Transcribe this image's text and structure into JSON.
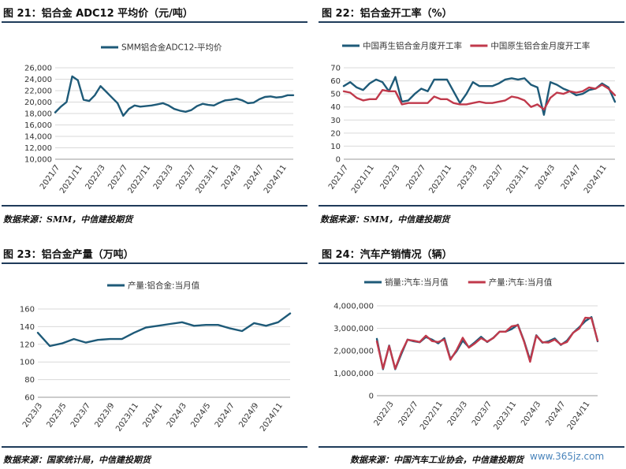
{
  "panels": [
    {
      "title": "图 21：铝合金 ADC12 平均价（元/吨）",
      "source": "数据来源：SMM，中信建投期货"
    },
    {
      "title": "图 22：铝合金开工率（%）",
      "source": "数据来源：SMM，中信建投期货"
    },
    {
      "title": "图 23：铝合金产量（万吨）",
      "source": "数据来源：国家统计局，中信建投期货"
    },
    {
      "title": "图 24：汽车产销情况（辆）",
      "source": "数据来源：中国汽车工业协会，中信建投期货"
    }
  ],
  "watermark": "www.365jz.com",
  "colors": {
    "navy": "#1e5a78",
    "red": "#c0394b",
    "rule": "#1f3b5a"
  },
  "chart_data": [
    {
      "type": "line",
      "title": "图 21：铝合金 ADC12 平均价（元/吨）",
      "xlabel": "",
      "ylabel": "",
      "ylim": [
        10000,
        26000
      ],
      "yticks": [
        10000,
        12000,
        14000,
        16000,
        18000,
        20000,
        22000,
        24000,
        26000
      ],
      "ytick_labels": [
        "10,000",
        "12,000",
        "14,000",
        "16,000",
        "18,000",
        "20,000",
        "22,000",
        "24,000",
        "26,000"
      ],
      "x_ticks": [
        "2021/7",
        "2021/11",
        "2022/3",
        "2022/7",
        "2022/11",
        "2023/3",
        "2023/7",
        "2023/11",
        "2024/3",
        "2024/7",
        "2024/11"
      ],
      "x": [
        "2021/7",
        "2021/8",
        "2021/9",
        "2021/10",
        "2021/11",
        "2021/12",
        "2022/1",
        "2022/2",
        "2022/3",
        "2022/4",
        "2022/5",
        "2022/6",
        "2022/7",
        "2022/8",
        "2022/9",
        "2022/10",
        "2022/11",
        "2022/12",
        "2023/1",
        "2023/2",
        "2023/3",
        "2023/4",
        "2023/5",
        "2023/6",
        "2023/7",
        "2023/8",
        "2023/9",
        "2023/10",
        "2023/11",
        "2023/12",
        "2024/1",
        "2024/2",
        "2024/3",
        "2024/4",
        "2024/5",
        "2024/6",
        "2024/7",
        "2024/8",
        "2024/9",
        "2024/10",
        "2024/11",
        "2024/12",
        "2025/1"
      ],
      "grid": true,
      "legend": "top",
      "series": [
        {
          "name": "SMM铝合金ADC12-平均价",
          "values": [
            18200,
            19200,
            20000,
            24500,
            23800,
            20400,
            20200,
            21200,
            22800,
            21800,
            20800,
            19800,
            17600,
            18800,
            19400,
            19200,
            19300,
            19400,
            19600,
            19800,
            19400,
            18800,
            18500,
            18300,
            18600,
            19300,
            19700,
            19500,
            19400,
            19900,
            20300,
            20400,
            20600,
            20300,
            19800,
            19900,
            20500,
            20900,
            21000,
            20800,
            20900,
            21200,
            21200
          ]
        }
      ]
    },
    {
      "type": "line",
      "title": "图 22：铝合金开工率（%）",
      "xlabel": "",
      "ylabel": "",
      "ylim": [
        0,
        70
      ],
      "yticks": [
        0,
        10,
        20,
        30,
        40,
        50,
        60,
        70
      ],
      "ytick_labels": [
        "0",
        "10",
        "20",
        "30",
        "40",
        "50",
        "60",
        "70"
      ],
      "x_ticks": [
        "2021/7",
        "2021/11",
        "2022/3",
        "2022/7",
        "2022/11",
        "2023/3",
        "2023/7",
        "2023/11",
        "2024/3",
        "2024/7",
        "2024/11"
      ],
      "x": [
        "2021/7",
        "2021/8",
        "2021/9",
        "2021/10",
        "2021/11",
        "2021/12",
        "2022/1",
        "2022/2",
        "2022/3",
        "2022/4",
        "2022/5",
        "2022/6",
        "2022/7",
        "2022/8",
        "2022/9",
        "2022/10",
        "2022/11",
        "2022/12",
        "2023/1",
        "2023/2",
        "2023/3",
        "2023/4",
        "2023/5",
        "2023/6",
        "2023/7",
        "2023/8",
        "2023/9",
        "2023/10",
        "2023/11",
        "2023/12",
        "2024/1",
        "2024/2",
        "2024/3",
        "2024/4",
        "2024/5",
        "2024/6",
        "2024/7",
        "2024/8",
        "2024/9",
        "2024/10",
        "2024/11",
        "2024/12",
        "2025/1"
      ],
      "grid": true,
      "legend": "top",
      "series": [
        {
          "name": "中国再生铝合金月度开工率",
          "values": [
            56,
            59,
            55,
            53,
            58,
            61,
            59,
            52,
            63,
            44,
            45,
            50,
            54,
            52,
            61,
            61,
            61,
            52,
            43,
            50,
            59,
            56,
            56,
            56,
            58,
            61,
            62,
            61,
            62,
            57,
            55,
            34,
            59,
            57,
            54,
            52,
            49,
            50,
            53,
            54,
            58,
            55,
            44
          ]
        },
        {
          "name": "中国原生铝合金月度开工率",
          "values": [
            52,
            51,
            47,
            45,
            46,
            46,
            53,
            52,
            52,
            42,
            43,
            43,
            43,
            43,
            48,
            46,
            46,
            43,
            42,
            42,
            43,
            44,
            43,
            43,
            44,
            45,
            48,
            47,
            45,
            40,
            42,
            38,
            47,
            51,
            50,
            52,
            51,
            52,
            55,
            54,
            57,
            54,
            49
          ]
        }
      ]
    },
    {
      "type": "line",
      "title": "图 23：铝合金产量（万吨）",
      "xlabel": "",
      "ylabel": "",
      "ylim": [
        60,
        160
      ],
      "yticks": [
        60,
        80,
        100,
        120,
        140,
        160
      ],
      "ytick_labels": [
        "60",
        "80",
        "100",
        "120",
        "140",
        "160"
      ],
      "x_ticks": [
        "2023/3",
        "2023/5",
        "2023/7",
        "2023/9",
        "2023/11",
        "2024/1",
        "2024/3",
        "2024/5",
        "2024/7",
        "2024/9",
        "2024/11"
      ],
      "x": [
        "2023/3",
        "2023/4",
        "2023/5",
        "2023/6",
        "2023/7",
        "2023/8",
        "2023/9",
        "2023/10",
        "2023/11",
        "2023/12",
        "2024/1",
        "2024/2",
        "2024/3",
        "2024/4",
        "2024/5",
        "2024/6",
        "2024/7",
        "2024/8",
        "2024/9",
        "2024/10",
        "2024/11",
        "2024/12"
      ],
      "grid": true,
      "legend": "top",
      "series": [
        {
          "name": "产量:铝合金:当月值",
          "values": [
            133,
            118,
            121,
            126,
            122,
            125,
            126,
            126,
            133,
            139,
            141,
            143,
            145,
            141,
            142,
            142,
            138,
            135,
            144,
            141,
            145,
            155
          ]
        }
      ]
    },
    {
      "type": "line",
      "title": "图 24：汽车产销情况（辆）",
      "xlabel": "",
      "ylabel": "",
      "ylim": [
        0,
        4000000
      ],
      "yticks": [
        0,
        1000000,
        2000000,
        3000000,
        4000000
      ],
      "ytick_labels": [
        "0",
        "1,000,000",
        "2,000,000",
        "3,000,000",
        "4,000,000"
      ],
      "x_ticks": [
        "2022/3",
        "2022/7",
        "2022/11",
        "2023/3",
        "2023/7",
        "2023/11",
        "2024/3",
        "2024/7",
        "2024/11"
      ],
      "x": [
        "2022/1",
        "2022/2",
        "2022/3",
        "2022/4",
        "2022/5",
        "2022/6",
        "2022/7",
        "2022/8",
        "2022/9",
        "2022/10",
        "2022/11",
        "2022/12",
        "2023/1",
        "2023/2",
        "2023/3",
        "2023/4",
        "2023/5",
        "2023/6",
        "2023/7",
        "2023/8",
        "2023/9",
        "2023/10",
        "2023/11",
        "2023/12",
        "2024/1",
        "2024/2",
        "2024/3",
        "2024/4",
        "2024/5",
        "2024/6",
        "2024/7",
        "2024/8",
        "2024/9",
        "2024/10",
        "2024/11",
        "2024/12",
        "2025/1"
      ],
      "grid": true,
      "legend": "top",
      "series": [
        {
          "name": "销量:汽车:当月值",
          "values": [
            2530000,
            1180000,
            2230000,
            1180000,
            1860000,
            2500000,
            2420000,
            2380000,
            2610000,
            2500000,
            2330000,
            2560000,
            1640000,
            1980000,
            2450000,
            2160000,
            2380000,
            2620000,
            2390000,
            2580000,
            2850000,
            2850000,
            2970000,
            3160000,
            2440000,
            1580000,
            2690000,
            2360000,
            2420000,
            2550000,
            2260000,
            2450000,
            2800000,
            3050000,
            3320000,
            3500000,
            2420000
          ]
        },
        {
          "name": "产量:汽车:当月值",
          "values": [
            2420000,
            1210000,
            2210000,
            1200000,
            1930000,
            2490000,
            2450000,
            2390000,
            2670000,
            2430000,
            2390000,
            2500000,
            1600000,
            2030000,
            2580000,
            2140000,
            2330000,
            2560000,
            2410000,
            2570000,
            2850000,
            2850000,
            3090000,
            3140000,
            2410000,
            1510000,
            2670000,
            2380000,
            2370000,
            2500000,
            2280000,
            2390000,
            2800000,
            2990000,
            3470000,
            3450000,
            2450000
          ]
        }
      ]
    }
  ]
}
